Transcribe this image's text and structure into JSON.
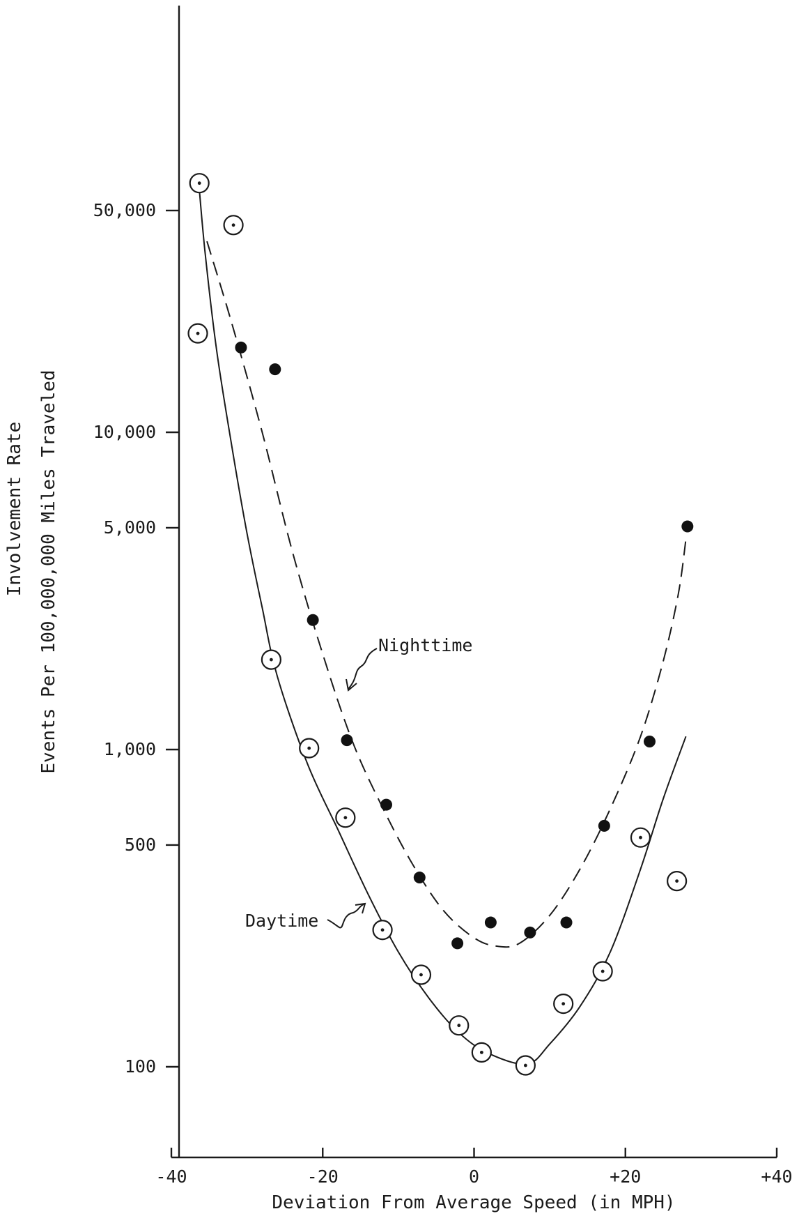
{
  "chart_data": {
    "type": "scatter",
    "title": "",
    "xlabel": "Deviation From Average Speed (in MPH)",
    "ylabel_lines": [
      "Involvement Rate",
      "Events Per 100,000,000 Miles Traveled"
    ],
    "xlim": [
      -40,
      40
    ],
    "ylim_log": [
      35,
      2000000
    ],
    "yscale": "log",
    "grid": false,
    "x_ticks": [
      -40,
      -20,
      0,
      20,
      40
    ],
    "x_tick_labels": [
      "-40",
      "-20",
      "0",
      "+20",
      "+40"
    ],
    "y_ticks": [
      50000,
      10000,
      5000,
      1000,
      500,
      100
    ],
    "y_tick_labels": [
      "50,000",
      "10,000",
      "5,000",
      "1,000",
      "500",
      "100"
    ],
    "annotations": {
      "nighttime": "Nighttime",
      "daytime": "Daytime"
    },
    "series": [
      {
        "name": "Nighttime",
        "marker": "filled-circle",
        "line": "dashed",
        "points": [
          {
            "x": -30.8,
            "y": 18500
          },
          {
            "x": -26.3,
            "y": 15800
          },
          {
            "x": -21.3,
            "y": 2560
          },
          {
            "x": -16.8,
            "y": 1070
          },
          {
            "x": -11.6,
            "y": 670
          },
          {
            "x": -7.2,
            "y": 395
          },
          {
            "x": -2.2,
            "y": 245
          },
          {
            "x": 2.2,
            "y": 285
          },
          {
            "x": 7.4,
            "y": 265
          },
          {
            "x": 12.2,
            "y": 285
          },
          {
            "x": 17.2,
            "y": 575
          },
          {
            "x": 23.2,
            "y": 1060
          },
          {
            "x": 28.2,
            "y": 5050
          }
        ],
        "curve": [
          {
            "x": -35.3,
            "y": 40000
          },
          {
            "x": -32,
            "y": 22000
          },
          {
            "x": -28,
            "y": 10000
          },
          {
            "x": -24,
            "y": 4200
          },
          {
            "x": -20,
            "y": 2000
          },
          {
            "x": -16,
            "y": 1050
          },
          {
            "x": -12,
            "y": 650
          },
          {
            "x": -8,
            "y": 430
          },
          {
            "x": -4,
            "y": 310
          },
          {
            "x": 0,
            "y": 255
          },
          {
            "x": 3,
            "y": 240
          },
          {
            "x": 6,
            "y": 245
          },
          {
            "x": 10,
            "y": 300
          },
          {
            "x": 14,
            "y": 420
          },
          {
            "x": 18,
            "y": 650
          },
          {
            "x": 22,
            "y": 1100
          },
          {
            "x": 25,
            "y": 1900
          },
          {
            "x": 27,
            "y": 3100
          },
          {
            "x": 28,
            "y": 4600
          }
        ]
      },
      {
        "name": "Daytime",
        "marker": "dotted-circle",
        "line": "solid",
        "points": [
          {
            "x": -36.3,
            "y": 61000
          },
          {
            "x": -31.8,
            "y": 45000
          },
          {
            "x": -36.5,
            "y": 20500
          },
          {
            "x": -26.8,
            "y": 1920
          },
          {
            "x": -21.8,
            "y": 1010
          },
          {
            "x": -17.0,
            "y": 610
          },
          {
            "x": -12.1,
            "y": 270
          },
          {
            "x": -7.0,
            "y": 195
          },
          {
            "x": -2.0,
            "y": 135
          },
          {
            "x": 1.0,
            "y": 111
          },
          {
            "x": 6.8,
            "y": 101
          },
          {
            "x": 11.8,
            "y": 158
          },
          {
            "x": 17.0,
            "y": 200
          },
          {
            "x": 22.0,
            "y": 528
          },
          {
            "x": 26.8,
            "y": 385
          }
        ],
        "curve": [
          {
            "x": -36.3,
            "y": 58000
          },
          {
            "x": -35.5,
            "y": 36000
          },
          {
            "x": -34,
            "y": 18000
          },
          {
            "x": -32,
            "y": 9000
          },
          {
            "x": -30,
            "y": 4800
          },
          {
            "x": -28,
            "y": 2800
          },
          {
            "x": -26,
            "y": 1700
          },
          {
            "x": -22,
            "y": 900
          },
          {
            "x": -18,
            "y": 560
          },
          {
            "x": -14,
            "y": 350
          },
          {
            "x": -10,
            "y": 230
          },
          {
            "x": -6,
            "y": 165
          },
          {
            "x": -2,
            "y": 128
          },
          {
            "x": 2,
            "y": 110
          },
          {
            "x": 7,
            "y": 102
          },
          {
            "x": 10,
            "y": 118
          },
          {
            "x": 14,
            "y": 155
          },
          {
            "x": 18,
            "y": 230
          },
          {
            "x": 22,
            "y": 420
          },
          {
            "x": 25,
            "y": 700
          },
          {
            "x": 28,
            "y": 1100
          }
        ]
      }
    ]
  }
}
